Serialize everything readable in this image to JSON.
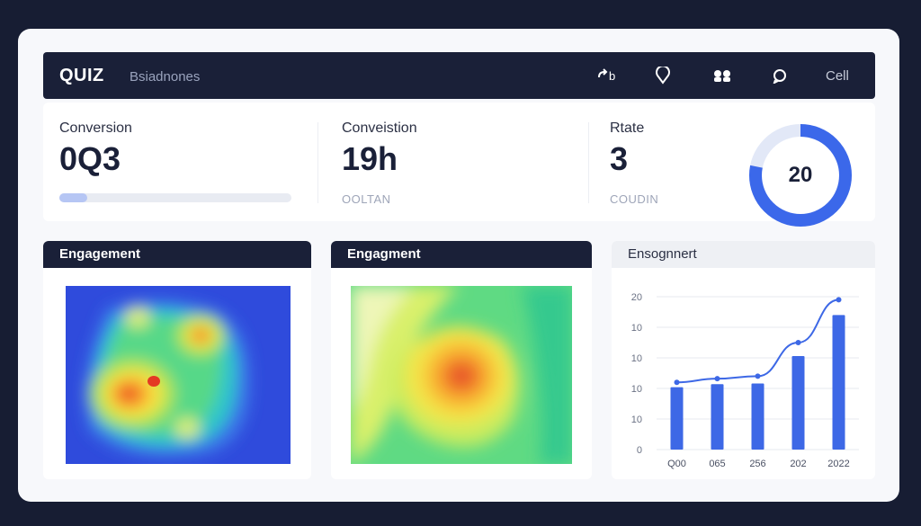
{
  "header": {
    "brand": "QUIZ",
    "subtitle": "Bsiadnones",
    "nav": [
      {
        "icon": "link-icon",
        "label": "↶b"
      },
      {
        "icon": "location-pin-icon",
        "label": "⭘"
      },
      {
        "icon": "users-icon",
        "label": "●●"
      },
      {
        "icon": "chat-bubble-icon",
        "label": "○"
      },
      {
        "icon": "call-text",
        "label": "Cell"
      }
    ]
  },
  "stats": [
    {
      "label": "Conversion",
      "value": "0Q3",
      "caption": "",
      "progress": 0.12
    },
    {
      "label": "Conveistion",
      "value": "19h",
      "caption": "OOLTAN"
    },
    {
      "label": "Rtate",
      "value": "3",
      "caption": "COUDIN"
    }
  ],
  "donut": {
    "value": "20",
    "fraction": 0.78,
    "color": "#3b68ea"
  },
  "cards": [
    {
      "title": "Engagement"
    },
    {
      "title": "Engagment"
    },
    {
      "title": "Ensognnert"
    }
  ],
  "chart_data": {
    "type": "bar",
    "categories": [
      "Q00",
      "065",
      "256",
      "202",
      "2022"
    ],
    "values": [
      10.2,
      10.7,
      10.8,
      15.3,
      22.0
    ],
    "line_values": [
      11.0,
      11.6,
      12.0,
      17.5,
      24.5
    ],
    "y_tick_labels": [
      "0",
      "10",
      "10",
      "10",
      "10",
      "20"
    ],
    "ylim": [
      0,
      25
    ],
    "grid": true,
    "bar_color": "#3d68e6",
    "line_color": "#3d68e6"
  }
}
